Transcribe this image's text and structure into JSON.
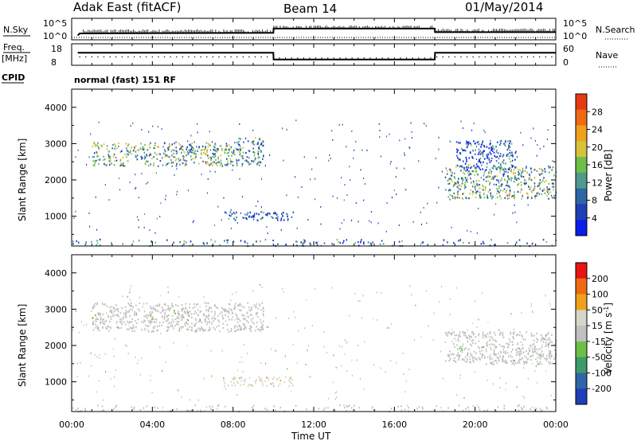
{
  "header": {
    "site": "Adak East (fitACF)",
    "beam": "Beam 14",
    "date": "01/May/2014"
  },
  "noise_panel": {
    "left_label": "N.Sky",
    "right_label": "N.Search",
    "right_legend_line": "dotted",
    "left_ticks": [
      "10^5",
      "10^0"
    ],
    "right_ticks": [
      "10^5",
      "10^0"
    ]
  },
  "freq_panel": {
    "left_label_1": "Freq.",
    "left_label_2": "[MHz]",
    "right_label": "Nave",
    "left_ticks": [
      "18",
      "8"
    ],
    "right_ticks": [
      "60",
      "0"
    ]
  },
  "cpid": {
    "label": "CPID",
    "value": "normal (fast) 151 RF"
  },
  "x_axis": {
    "title": "Time UT",
    "ticks": [
      "00:00",
      "04:00",
      "08:00",
      "12:00",
      "16:00",
      "20:00",
      "00:00"
    ]
  },
  "colors": {
    "power_scale": [
      "#0b1ee8",
      "#1f3fb5",
      "#2e66a8",
      "#4f9a8e",
      "#6cc04a",
      "#d6c33a",
      "#f0a11c",
      "#ef6a12",
      "#e83a10"
    ],
    "velocity_scale": [
      "#e81410",
      "#ef6a12",
      "#f0a11c",
      "#d6d6c8",
      "#c0c0c0",
      "#6cc04a",
      "#3f9a6a",
      "#2e66a8",
      "#1f3fb5"
    ],
    "background": "#ffffff"
  },
  "chart_data": [
    {
      "type": "line",
      "name": "noise",
      "x_unit": "hours UT",
      "series": [
        {
          "name": "N.Sky",
          "x": [
            0.3,
            0.4,
            10.0,
            10.01,
            18.0,
            18.01,
            24.0
          ],
          "y": [
            10,
            30,
            40,
            400,
            400,
            60,
            60
          ]
        }
      ],
      "ylim": [
        1,
        100000
      ],
      "log_scale": true
    },
    {
      "type": "line",
      "name": "frequency",
      "x_unit": "hours UT",
      "series": [
        {
          "name": "Freq",
          "x": [
            0.3,
            10.0,
            10.01,
            18.0,
            18.01,
            24.0
          ],
          "y": [
            13.8,
            13.8,
            10.7,
            10.7,
            13.8,
            13.8
          ]
        },
        {
          "name": "Nave",
          "x": [
            0.3,
            10.0,
            10.01,
            18.0,
            18.01,
            24.0
          ],
          "y": [
            17,
            17,
            13,
            13,
            17,
            17
          ]
        }
      ],
      "ylim": [
        8,
        18
      ]
    },
    {
      "type": "heatmap",
      "quantity": "power",
      "title": "Power [dB]",
      "ylabel": "Slant Range [km]",
      "xlabel": "Time UT",
      "x_ticks": [
        "00:00",
        "04:00",
        "08:00",
        "12:00",
        "16:00",
        "20:00",
        "00:00"
      ],
      "y_ticks": [
        1000,
        2000,
        3000,
        4000
      ],
      "ylim": [
        180,
        4500
      ],
      "xlim": [
        0,
        24
      ],
      "colorbar": {
        "label": "Power [dB]",
        "ticks": [
          4,
          8,
          12,
          16,
          20,
          24,
          28
        ],
        "range": [
          0,
          32
        ]
      },
      "regions": [
        {
          "t0": 1.0,
          "t1": 8.0,
          "r0": 2400,
          "r1": 3050,
          "value": 14
        },
        {
          "t0": 8.0,
          "t1": 9.5,
          "r0": 2400,
          "r1": 3200,
          "value": 10
        },
        {
          "t0": 7.5,
          "t1": 11.0,
          "r0": 900,
          "r1": 1150,
          "value": 7
        },
        {
          "t0": 18.5,
          "t1": 24.0,
          "r0": 1500,
          "r1": 2400,
          "value": 13
        },
        {
          "t0": 19.0,
          "t1": 22.0,
          "r0": 2300,
          "r1": 3100,
          "value": 6
        },
        {
          "t0": 0.0,
          "t1": 24.0,
          "r0": 200,
          "r1": 380,
          "value": 8
        }
      ]
    },
    {
      "type": "heatmap",
      "quantity": "velocity",
      "title": "Velocity [m s^-1]",
      "ylabel": "Slant Range [km]",
      "xlabel": "Time UT",
      "x_ticks": [
        "00:00",
        "04:00",
        "08:00",
        "12:00",
        "16:00",
        "20:00",
        "00:00"
      ],
      "y_ticks": [
        1000,
        2000,
        3000,
        4000
      ],
      "ylim": [
        180,
        4500
      ],
      "xlim": [
        0,
        24
      ],
      "colorbar": {
        "label": "Velocity [m s^-1]",
        "ticks": [
          200,
          100,
          50,
          15,
          -15,
          -50,
          -100,
          -200
        ],
        "range": [
          -250,
          250
        ]
      },
      "regions": [
        {
          "t0": 1.0,
          "t1": 9.5,
          "r0": 2400,
          "r1": 3200,
          "value": 0
        },
        {
          "t0": 7.5,
          "t1": 11.0,
          "r0": 900,
          "r1": 1150,
          "value": 60
        },
        {
          "t0": 18.5,
          "t1": 24.0,
          "r0": 1500,
          "r1": 2400,
          "value": 0
        },
        {
          "t0": 0.0,
          "t1": 24.0,
          "r0": 200,
          "r1": 380,
          "value": 10
        }
      ]
    }
  ]
}
